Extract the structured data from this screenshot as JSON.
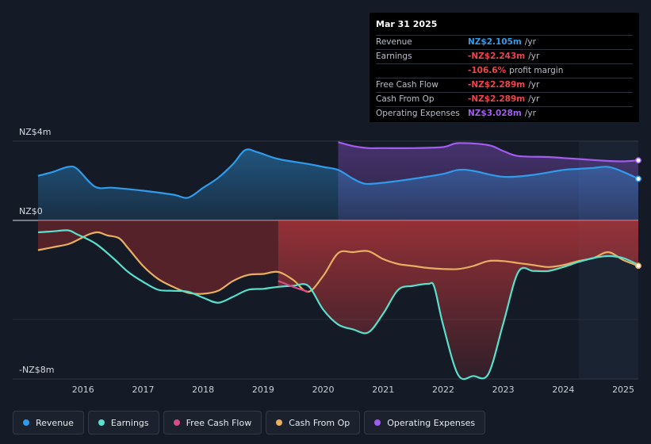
{
  "tooltip": {
    "date": "Mar 31 2025",
    "rows": [
      {
        "label": "Revenue",
        "value": "NZ$2.105m",
        "unit": "/yr",
        "color": "#2f9bea"
      },
      {
        "label": "Earnings",
        "value": "-NZ$2.243m",
        "unit": "/yr",
        "color": "#f0444b"
      },
      {
        "label": "",
        "value": "-106.6%",
        "unit": "profit margin",
        "color": "#f0444b"
      },
      {
        "label": "Free Cash Flow",
        "value": "-NZ$2.289m",
        "unit": "/yr",
        "color": "#f0444b"
      },
      {
        "label": "Cash From Op",
        "value": "-NZ$2.289m",
        "unit": "/yr",
        "color": "#f0444b"
      },
      {
        "label": "Operating Expenses",
        "value": "NZ$3.028m",
        "unit": "/yr",
        "color": "#a35cf0"
      }
    ]
  },
  "chart_data": {
    "type": "area",
    "title": "",
    "xlabel": "",
    "ylabel": "",
    "y_axis_labels": [
      "NZ$4m",
      "NZ$0",
      "-NZ$8m"
    ],
    "y_ticks": [
      4,
      0,
      -8
    ],
    "ylim": [
      -8,
      4
    ],
    "xlim": [
      2015.25,
      2025.25
    ],
    "x_ticks": [
      2016,
      2017,
      2018,
      2019,
      2020,
      2021,
      2022,
      2023,
      2024,
      2025
    ],
    "x_tick_labels": [
      "2016",
      "2017",
      "2018",
      "2019",
      "2020",
      "2021",
      "2022",
      "2023",
      "2024",
      "2025"
    ],
    "series": [
      {
        "name": "Revenue",
        "color": "#2f9bea",
        "x": [
          2015.25,
          2015.5,
          2015.75,
          2015.9,
          2016.2,
          2016.5,
          2017.0,
          2017.5,
          2017.75,
          2018.0,
          2018.25,
          2018.5,
          2018.7,
          2018.9,
          2019.25,
          2019.75,
          2020.0,
          2020.25,
          2020.5,
          2020.7,
          2021.0,
          2021.5,
          2022.0,
          2022.25,
          2022.5,
          2023.0,
          2023.5,
          2024.0,
          2024.25,
          2024.5,
          2024.75,
          2025.0,
          2025.25
        ],
        "values": [
          2.25,
          2.45,
          2.7,
          2.6,
          1.7,
          1.65,
          1.5,
          1.3,
          1.15,
          1.65,
          2.15,
          2.85,
          3.55,
          3.45,
          3.1,
          2.85,
          2.7,
          2.55,
          2.1,
          1.85,
          1.9,
          2.1,
          2.35,
          2.55,
          2.5,
          2.2,
          2.3,
          2.55,
          2.6,
          2.65,
          2.7,
          2.45,
          2.1
        ]
      },
      {
        "name": "Operating Expenses",
        "color": "#a35cf0",
        "x": [
          2020.25,
          2020.5,
          2020.75,
          2021.0,
          2021.5,
          2022.0,
          2022.25,
          2022.75,
          2023.0,
          2023.25,
          2023.75,
          2024.0,
          2024.5,
          2024.75,
          2025.0,
          2025.25
        ],
        "values": [
          3.95,
          3.75,
          3.65,
          3.65,
          3.65,
          3.7,
          3.9,
          3.8,
          3.5,
          3.25,
          3.2,
          3.15,
          3.05,
          3.0,
          2.98,
          3.03
        ]
      },
      {
        "name": "Earnings",
        "color": "#59e0cc",
        "x": [
          2015.25,
          2015.5,
          2015.75,
          2015.9,
          2016.2,
          2016.5,
          2016.75,
          2017.0,
          2017.25,
          2017.5,
          2017.75,
          2018.0,
          2018.25,
          2018.5,
          2018.75,
          2019.0,
          2019.25,
          2019.5,
          2019.75,
          2020.0,
          2020.25,
          2020.5,
          2020.75,
          2021.0,
          2021.25,
          2021.5,
          2021.75,
          2021.85,
          2022.0,
          2022.25,
          2022.5,
          2022.75,
          2023.0,
          2023.25,
          2023.5,
          2023.75,
          2024.0,
          2024.25,
          2024.5,
          2024.75,
          2025.0,
          2025.25
        ],
        "values": [
          -0.6,
          -0.55,
          -0.5,
          -0.7,
          -1.15,
          -1.9,
          -2.6,
          -3.1,
          -3.5,
          -3.55,
          -3.6,
          -3.9,
          -4.15,
          -3.85,
          -3.5,
          -3.45,
          -3.35,
          -3.3,
          -3.3,
          -4.5,
          -5.25,
          -5.5,
          -5.65,
          -4.7,
          -3.5,
          -3.3,
          -3.2,
          -3.35,
          -5.3,
          -7.8,
          -7.85,
          -7.75,
          -5.2,
          -2.6,
          -2.55,
          -2.55,
          -2.35,
          -2.1,
          -1.9,
          -1.8,
          -1.9,
          -2.24
        ]
      },
      {
        "name": "Free Cash Flow",
        "color": "#d74c87",
        "x": [
          2019.25,
          2019.5,
          2019.75
        ],
        "values": [
          -3.05,
          -3.35,
          -3.6
        ]
      },
      {
        "name": "Cash From Op",
        "color": "#e8ae62",
        "x": [
          2015.25,
          2015.5,
          2015.75,
          2015.9,
          2016.1,
          2016.25,
          2016.4,
          2016.6,
          2016.75,
          2017.0,
          2017.25,
          2017.5,
          2017.75,
          2018.0,
          2018.25,
          2018.5,
          2018.75,
          2019.0,
          2019.25,
          2019.5,
          2019.75,
          2020.0,
          2020.25,
          2020.5,
          2020.75,
          2021.0,
          2021.25,
          2021.5,
          2021.75,
          2022.0,
          2022.25,
          2022.5,
          2022.75,
          2023.0,
          2023.25,
          2023.5,
          2023.75,
          2024.0,
          2024.25,
          2024.5,
          2024.75,
          2025.0,
          2025.25
        ],
        "values": [
          -1.5,
          -1.35,
          -1.2,
          -1.0,
          -0.7,
          -0.6,
          -0.75,
          -0.9,
          -1.4,
          -2.3,
          -2.95,
          -3.35,
          -3.65,
          -3.7,
          -3.55,
          -3.05,
          -2.75,
          -2.7,
          -2.6,
          -3.0,
          -3.6,
          -2.8,
          -1.65,
          -1.6,
          -1.55,
          -1.95,
          -2.2,
          -2.3,
          -2.4,
          -2.45,
          -2.45,
          -2.3,
          -2.05,
          -2.05,
          -2.15,
          -2.25,
          -2.35,
          -2.25,
          -2.05,
          -1.9,
          -1.6,
          -2.0,
          -2.29
        ]
      }
    ],
    "legend_position": "bottom"
  },
  "legend": [
    {
      "label": "Revenue",
      "color": "#2f9bea"
    },
    {
      "label": "Earnings",
      "color": "#59e0cc"
    },
    {
      "label": "Free Cash Flow",
      "color": "#d74c87"
    },
    {
      "label": "Cash From Op",
      "color": "#e8ae62"
    },
    {
      "label": "Operating Expenses",
      "color": "#a35cf0"
    }
  ]
}
